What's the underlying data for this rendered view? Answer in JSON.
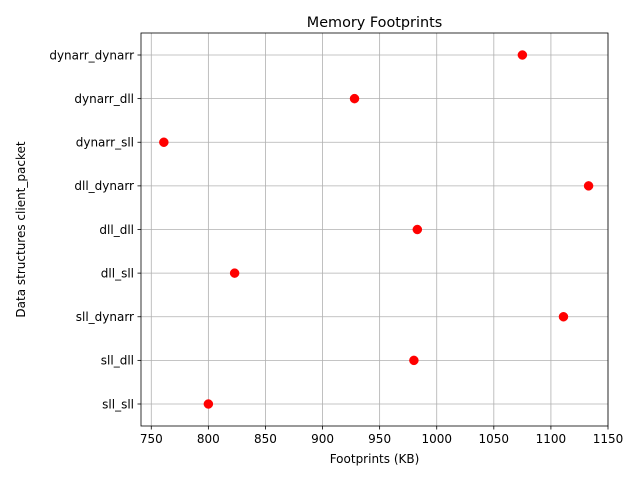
{
  "chart_data": {
    "type": "scatter",
    "title": "Memory Footprints",
    "xlabel": "Footprints (KB)",
    "ylabel": "Data structures client_packet",
    "xlim": [
      741,
      1150
    ],
    "x_ticks": [
      750,
      800,
      850,
      900,
      950,
      1000,
      1050,
      1100,
      1150
    ],
    "grid": true,
    "marker_color": "#ff0000",
    "categories": [
      "sll_sll",
      "sll_dll",
      "sll_dynarr",
      "dll_sll",
      "dll_dll",
      "dll_dynarr",
      "dynarr_sll",
      "dynarr_dll",
      "dynarr_dynarr"
    ],
    "values": [
      800,
      980,
      1111,
      823,
      983,
      1133,
      761,
      928,
      1075
    ]
  }
}
